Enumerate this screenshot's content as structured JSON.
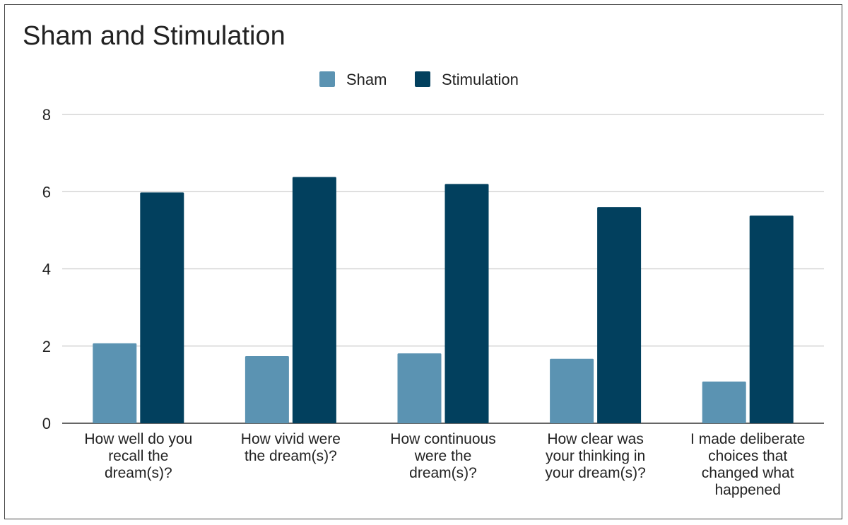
{
  "chart_data": {
    "type": "bar",
    "title": "Sham and Stimulation",
    "categories": [
      [
        "How well do you",
        "recall the",
        "dream(s)?"
      ],
      [
        "How vivid were",
        "the dream(s)?"
      ],
      [
        "How continuous",
        "were the",
        "dream(s)?"
      ],
      [
        "How clear was",
        "your thinking in",
        "your dream(s)?"
      ],
      [
        "I made deliberate",
        "choices that",
        "changed what",
        "happened"
      ]
    ],
    "series": [
      {
        "name": "Sham",
        "color": "#5b93b2",
        "values": [
          2.07,
          1.74,
          1.81,
          1.67,
          1.08
        ]
      },
      {
        "name": "Stimulation",
        "color": "#02405e",
        "values": [
          5.98,
          6.38,
          6.2,
          5.6,
          5.38
        ]
      }
    ],
    "ylim": [
      0,
      8
    ],
    "yticks": [
      "0",
      "2",
      "4",
      "6",
      "8"
    ],
    "grid": true,
    "legend_position": "top-center"
  }
}
